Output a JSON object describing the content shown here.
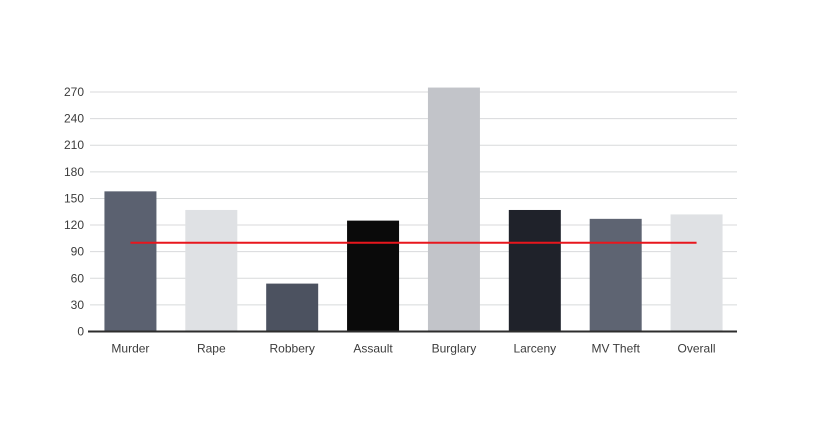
{
  "chart_data": {
    "type": "bar",
    "title": "",
    "categories": [
      "Murder",
      "Rape",
      "Robbery",
      "Assault",
      "Burglary",
      "Larceny",
      "MV Theft",
      "Overall"
    ],
    "values": [
      158,
      137,
      54,
      125,
      275,
      137,
      127,
      132
    ],
    "bar_colors": [
      "#5b6170",
      "#dfe1e4",
      "#4c5260",
      "#0a0a0a",
      "#c2c4c9",
      "#1f222a",
      "#5e6472",
      "#dfe1e4"
    ],
    "y_ticks": [
      0,
      30,
      60,
      90,
      120,
      150,
      180,
      210,
      240,
      270
    ],
    "ylim": [
      0,
      270
    ],
    "xlabel": "",
    "ylabel": "",
    "grid": true,
    "legend": "none",
    "reference_line": {
      "name": "reference-line-100",
      "value": 100,
      "color": "#e8161d"
    },
    "colors": {
      "background": "#ffffff",
      "gridline": "#d8dadb",
      "axis_line": "#2d2d2d",
      "tick_label": "#3c3c3c",
      "category_label": "#3c3c3c"
    }
  }
}
